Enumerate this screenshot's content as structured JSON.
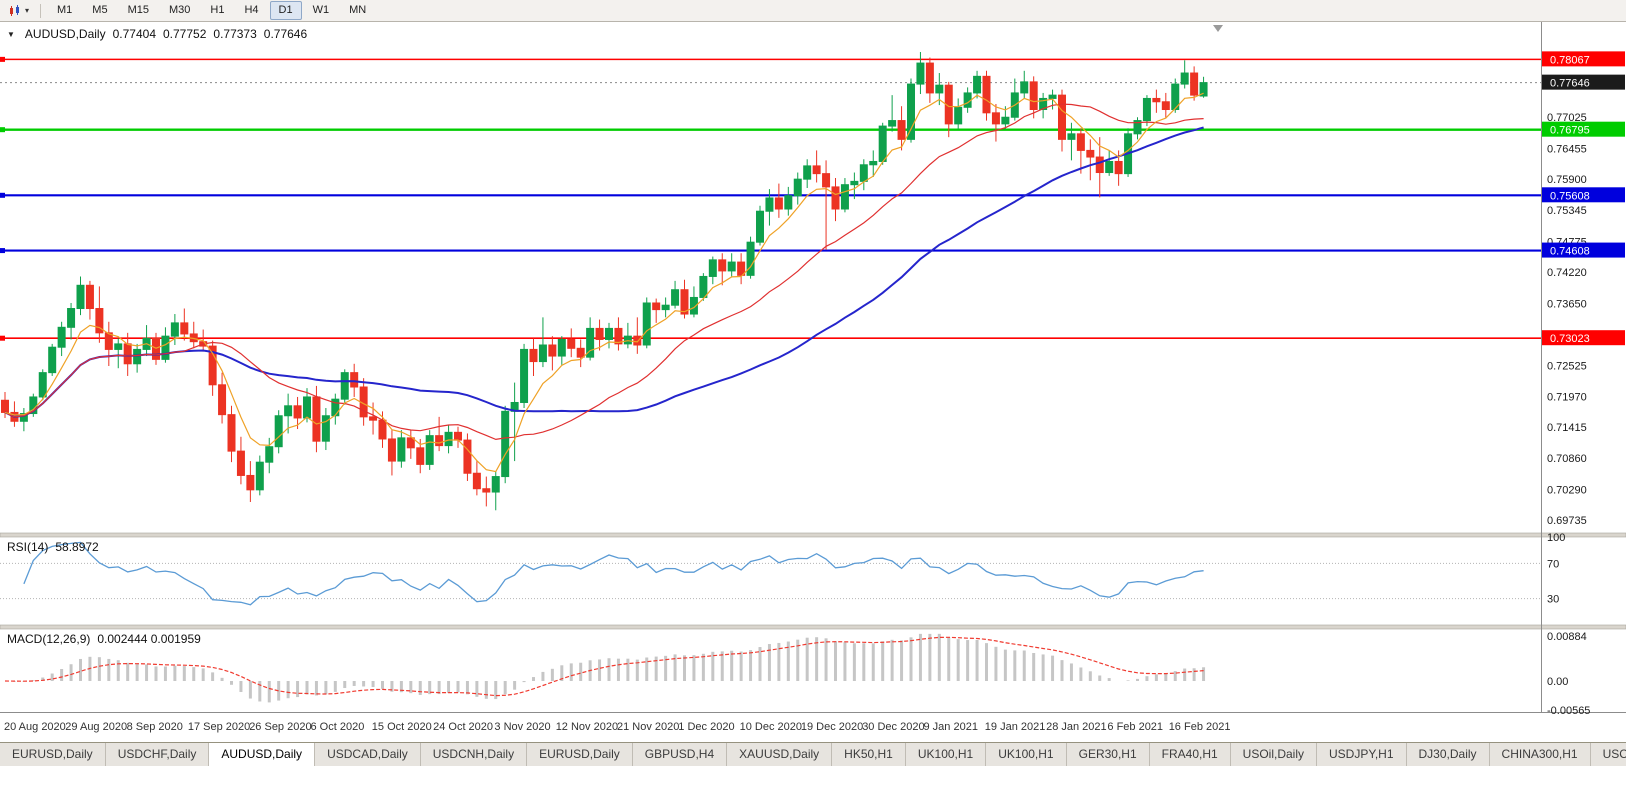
{
  "toolbar": {
    "dropdown_caret": "▾",
    "timeframes": [
      {
        "label": "M1",
        "active": false
      },
      {
        "label": "M5",
        "active": false
      },
      {
        "label": "M15",
        "active": false
      },
      {
        "label": "M30",
        "active": false
      },
      {
        "label": "H1",
        "active": false
      },
      {
        "label": "H4",
        "active": false
      },
      {
        "label": "D1",
        "active": true
      },
      {
        "label": "W1",
        "active": false
      },
      {
        "label": "MN",
        "active": false
      }
    ]
  },
  "chart": {
    "collapse_icon": "▼",
    "title": "AUDUSD,Daily",
    "open": "0.77404",
    "high": "0.77752",
    "low": "0.77373",
    "close": "0.77646",
    "scale": {
      "price_top": 0.78743,
      "price_bottom": 0.69499
    },
    "price_axis_labels": [
      {
        "text": "0.77025",
        "value": 0.77025
      },
      {
        "text": "0.76455",
        "value": 0.76455
      },
      {
        "text": "0.75900",
        "value": 0.759
      },
      {
        "text": "0.75345",
        "value": 0.75345
      },
      {
        "text": "0.74775",
        "value": 0.74775
      },
      {
        "text": "0.74220",
        "value": 0.7422
      },
      {
        "text": "0.73650",
        "value": 0.7365
      },
      {
        "text": "0.73080",
        "value": 0.7308
      },
      {
        "text": "0.72525",
        "value": 0.72525
      },
      {
        "text": "0.71970",
        "value": 0.7197
      },
      {
        "text": "0.71415",
        "value": 0.71415
      },
      {
        "text": "0.70860",
        "value": 0.7086
      },
      {
        "text": "0.70290",
        "value": 0.7029
      },
      {
        "text": "0.69735",
        "value": 0.69735
      }
    ],
    "hlines": [
      {
        "label": "0.78067",
        "value": 0.78067,
        "color": "#ff0000",
        "width": 1.6
      },
      {
        "label": "0.76795",
        "value": 0.76795,
        "color": "#00cc00",
        "width": 2.4
      },
      {
        "label": "0.75608",
        "value": 0.75608,
        "color": "#0000dd",
        "width": 2.2
      },
      {
        "label": "0.74608",
        "value": 0.74608,
        "color": "#0000dd",
        "width": 2.2
      },
      {
        "label": "0.73023",
        "value": 0.73023,
        "color": "#ff0000",
        "width": 1.6
      }
    ],
    "bid": {
      "label": "0.77646",
      "value": 0.77646,
      "badge_bg": "#1b1b1b",
      "badge_fg": "#ffffff"
    },
    "colors": {
      "up": "#0fa04c",
      "down": "#ec3323",
      "ma_fast": "#efa227",
      "ma_mid": "#e03030",
      "ma_slow": "#2525cc",
      "axis_text": "#1a1a1a",
      "background": "#ffffff"
    }
  },
  "chart_data": {
    "type": "candlestick",
    "symbol": "AUDUSD",
    "timeframe": "Daily",
    "dates": [
      "20 Aug 2020",
      "29 Aug 2020",
      "8 Sep 2020",
      "17 Sep 2020",
      "26 Sep 2020",
      "6 Oct 2020",
      "15 Oct 2020",
      "24 Oct 2020",
      "3 Nov 2020",
      "12 Nov 2020",
      "21 Nov 2020",
      "1 Dec 2020",
      "10 Dec 2020",
      "19 Dec 2020",
      "30 Dec 2020",
      "9 Jan 2021",
      "19 Jan 2021",
      "28 Jan 2021",
      "6 Feb 2021",
      "16 Feb 2021"
    ],
    "candles": [
      [
        0.719,
        0.7205,
        0.7158,
        0.7168
      ],
      [
        0.7168,
        0.7188,
        0.7142,
        0.7152
      ],
      [
        0.7152,
        0.7176,
        0.7134,
        0.7166
      ],
      [
        0.7166,
        0.7202,
        0.716,
        0.7196
      ],
      [
        0.7196,
        0.7246,
        0.719,
        0.724
      ],
      [
        0.724,
        0.7292,
        0.7234,
        0.7286
      ],
      [
        0.7286,
        0.7332,
        0.727,
        0.7322
      ],
      [
        0.7322,
        0.7366,
        0.73,
        0.7356
      ],
      [
        0.7356,
        0.7414,
        0.7344,
        0.7398
      ],
      [
        0.7398,
        0.7406,
        0.7336,
        0.7356
      ],
      [
        0.7356,
        0.7396,
        0.7294,
        0.7312
      ],
      [
        0.7312,
        0.7332,
        0.7252,
        0.7282
      ],
      [
        0.7282,
        0.7302,
        0.7248,
        0.7292
      ],
      [
        0.7292,
        0.7312,
        0.7234,
        0.7256
      ],
      [
        0.7256,
        0.7292,
        0.724,
        0.7282
      ],
      [
        0.7282,
        0.7326,
        0.727,
        0.7302
      ],
      [
        0.7302,
        0.7312,
        0.7254,
        0.7264
      ],
      [
        0.7264,
        0.7322,
        0.7258,
        0.7306
      ],
      [
        0.7306,
        0.7346,
        0.729,
        0.733
      ],
      [
        0.733,
        0.7356,
        0.7298,
        0.731
      ],
      [
        0.731,
        0.7332,
        0.7284,
        0.7296
      ],
      [
        0.7296,
        0.7318,
        0.7278,
        0.7288
      ],
      [
        0.7288,
        0.7298,
        0.7198,
        0.7218
      ],
      [
        0.7218,
        0.724,
        0.7148,
        0.7164
      ],
      [
        0.7164,
        0.718,
        0.7078,
        0.7098
      ],
      [
        0.7098,
        0.7124,
        0.7038,
        0.7054
      ],
      [
        0.7054,
        0.708,
        0.7006,
        0.7028
      ],
      [
        0.7028,
        0.709,
        0.7018,
        0.7078
      ],
      [
        0.7078,
        0.7122,
        0.7058,
        0.7106
      ],
      [
        0.7106,
        0.7172,
        0.7094,
        0.7162
      ],
      [
        0.7162,
        0.7202,
        0.713,
        0.718
      ],
      [
        0.718,
        0.7196,
        0.7138,
        0.7158
      ],
      [
        0.7158,
        0.7212,
        0.715,
        0.7196
      ],
      [
        0.7196,
        0.7216,
        0.7096,
        0.7116
      ],
      [
        0.7116,
        0.7176,
        0.71,
        0.7162
      ],
      [
        0.7162,
        0.7202,
        0.7146,
        0.7192
      ],
      [
        0.7192,
        0.7246,
        0.7182,
        0.724
      ],
      [
        0.724,
        0.7256,
        0.7196,
        0.7214
      ],
      [
        0.7214,
        0.723,
        0.7144,
        0.716
      ],
      [
        0.716,
        0.7186,
        0.7128,
        0.7154
      ],
      [
        0.7154,
        0.717,
        0.7104,
        0.712
      ],
      [
        0.712,
        0.7136,
        0.7054,
        0.708
      ],
      [
        0.708,
        0.7136,
        0.7068,
        0.7122
      ],
      [
        0.7122,
        0.7136,
        0.7084,
        0.7104
      ],
      [
        0.7104,
        0.712,
        0.7058,
        0.7074
      ],
      [
        0.7074,
        0.7136,
        0.7064,
        0.7126
      ],
      [
        0.7126,
        0.716,
        0.7098,
        0.7108
      ],
      [
        0.7108,
        0.7146,
        0.7094,
        0.7132
      ],
      [
        0.7132,
        0.7142,
        0.7104,
        0.7118
      ],
      [
        0.7118,
        0.713,
        0.7044,
        0.7058
      ],
      [
        0.7058,
        0.708,
        0.7018,
        0.703
      ],
      [
        0.703,
        0.7052,
        0.6998,
        0.7024
      ],
      [
        0.7024,
        0.7062,
        0.6991,
        0.7052
      ],
      [
        0.7052,
        0.718,
        0.704,
        0.717
      ],
      [
        0.717,
        0.7222,
        0.708,
        0.7186
      ],
      [
        0.7186,
        0.7292,
        0.7176,
        0.7282
      ],
      [
        0.7282,
        0.7302,
        0.7234,
        0.726
      ],
      [
        0.726,
        0.734,
        0.725,
        0.729
      ],
      [
        0.729,
        0.7306,
        0.7244,
        0.727
      ],
      [
        0.727,
        0.7306,
        0.7254,
        0.73
      ],
      [
        0.73,
        0.732,
        0.7268,
        0.7284
      ],
      [
        0.7284,
        0.73,
        0.725,
        0.7268
      ],
      [
        0.7268,
        0.734,
        0.7262,
        0.732
      ],
      [
        0.732,
        0.7336,
        0.728,
        0.73
      ],
      [
        0.73,
        0.733,
        0.7284,
        0.732
      ],
      [
        0.732,
        0.734,
        0.728,
        0.7292
      ],
      [
        0.7292,
        0.733,
        0.7284,
        0.7306
      ],
      [
        0.7306,
        0.734,
        0.7274,
        0.729
      ],
      [
        0.729,
        0.7376,
        0.7284,
        0.7366
      ],
      [
        0.7366,
        0.7374,
        0.733,
        0.7354
      ],
      [
        0.7354,
        0.7376,
        0.734,
        0.7362
      ],
      [
        0.7362,
        0.7406,
        0.7356,
        0.739
      ],
      [
        0.739,
        0.7408,
        0.7338,
        0.7346
      ],
      [
        0.7346,
        0.7396,
        0.734,
        0.7376
      ],
      [
        0.7376,
        0.742,
        0.737,
        0.7414
      ],
      [
        0.7414,
        0.745,
        0.74,
        0.7444
      ],
      [
        0.7444,
        0.7456,
        0.7398,
        0.7424
      ],
      [
        0.7424,
        0.7456,
        0.7414,
        0.744
      ],
      [
        0.744,
        0.7456,
        0.74,
        0.7416
      ],
      [
        0.7416,
        0.7486,
        0.741,
        0.7476
      ],
      [
        0.7476,
        0.7542,
        0.747,
        0.7532
      ],
      [
        0.7532,
        0.7572,
        0.7506,
        0.7556
      ],
      [
        0.7556,
        0.7582,
        0.752,
        0.7536
      ],
      [
        0.7536,
        0.7576,
        0.7524,
        0.756
      ],
      [
        0.756,
        0.7602,
        0.7544,
        0.759
      ],
      [
        0.759,
        0.7626,
        0.7574,
        0.7614
      ],
      [
        0.7614,
        0.7642,
        0.7584,
        0.76
      ],
      [
        0.76,
        0.7624,
        0.7462,
        0.7576
      ],
      [
        0.7576,
        0.7592,
        0.7514,
        0.7536
      ],
      [
        0.7536,
        0.7592,
        0.753,
        0.758
      ],
      [
        0.758,
        0.7602,
        0.7554,
        0.7586
      ],
      [
        0.7586,
        0.7626,
        0.757,
        0.7616
      ],
      [
        0.7616,
        0.7642,
        0.7594,
        0.7622
      ],
      [
        0.7622,
        0.7692,
        0.7616,
        0.7686
      ],
      [
        0.7686,
        0.7742,
        0.7676,
        0.7696
      ],
      [
        0.7696,
        0.7722,
        0.7642,
        0.7662
      ],
      [
        0.7662,
        0.7772,
        0.7656,
        0.7762
      ],
      [
        0.7762,
        0.782,
        0.7744,
        0.78
      ],
      [
        0.78,
        0.781,
        0.7728,
        0.7746
      ],
      [
        0.7746,
        0.7782,
        0.7724,
        0.776
      ],
      [
        0.776,
        0.7766,
        0.7666,
        0.769
      ],
      [
        0.769,
        0.7736,
        0.768,
        0.772
      ],
      [
        0.772,
        0.7756,
        0.771,
        0.7746
      ],
      [
        0.7746,
        0.7786,
        0.7736,
        0.7776
      ],
      [
        0.7776,
        0.7786,
        0.7696,
        0.771
      ],
      [
        0.771,
        0.7726,
        0.7658,
        0.769
      ],
      [
        0.769,
        0.7722,
        0.768,
        0.7702
      ],
      [
        0.7702,
        0.7772,
        0.7696,
        0.7746
      ],
      [
        0.7746,
        0.7786,
        0.7736,
        0.7766
      ],
      [
        0.7766,
        0.7776,
        0.77,
        0.7716
      ],
      [
        0.7716,
        0.7746,
        0.77,
        0.7736
      ],
      [
        0.7736,
        0.7752,
        0.7716,
        0.7742
      ],
      [
        0.7742,
        0.7752,
        0.764,
        0.7662
      ],
      [
        0.7662,
        0.7692,
        0.7624,
        0.7672
      ],
      [
        0.7672,
        0.7682,
        0.76,
        0.7642
      ],
      [
        0.7642,
        0.7662,
        0.7588,
        0.763
      ],
      [
        0.763,
        0.7666,
        0.7557,
        0.7602
      ],
      [
        0.7602,
        0.7642,
        0.7596,
        0.7622
      ],
      [
        0.7622,
        0.7642,
        0.7578,
        0.76
      ],
      [
        0.76,
        0.7682,
        0.7594,
        0.7672
      ],
      [
        0.7672,
        0.7702,
        0.7662,
        0.7696
      ],
      [
        0.7696,
        0.7742,
        0.7686,
        0.7736
      ],
      [
        0.7736,
        0.7752,
        0.771,
        0.773
      ],
      [
        0.773,
        0.7746,
        0.77,
        0.7716
      ],
      [
        0.7716,
        0.7772,
        0.771,
        0.7762
      ],
      [
        0.7762,
        0.7805,
        0.7754,
        0.7782
      ],
      [
        0.7782,
        0.7794,
        0.7732,
        0.7742
      ],
      [
        0.77404,
        0.77752,
        0.77373,
        0.77646
      ]
    ],
    "indicators": {
      "moving_averages": [
        {
          "name": "fast",
          "period": 6,
          "color": "#efa227"
        },
        {
          "name": "mid",
          "period": 20,
          "color": "#e03030"
        },
        {
          "name": "slow",
          "period": 45,
          "color": "#2525cc"
        }
      ],
      "rsi": {
        "period": 14,
        "value_text": "58.8972",
        "levels": [
          100,
          70,
          30
        ],
        "color": "#5b9bd5"
      },
      "macd": {
        "fast": 12,
        "slow": 26,
        "signal": 9,
        "value_text": "0.002444",
        "signal_text": "0.001959",
        "axis_labels": [
          "0.00884",
          "0.00",
          "-0.00565"
        ],
        "axis_values": [
          0.00884,
          0,
          -0.00565
        ],
        "hist_color": "#c6c6c6",
        "signal_color": "#f03b30"
      }
    }
  },
  "rsi_panel": {
    "title": "RSI(14)",
    "value": "58.8972"
  },
  "macd_panel": {
    "title": "MACD(12,26,9)",
    "values": "0.002444 0.001959"
  },
  "tabs": {
    "scroll_left_icon": "◄",
    "items": [
      {
        "label": "EURUSD,Daily",
        "active": false
      },
      {
        "label": "USDCHF,Daily",
        "active": false
      },
      {
        "label": "AUDUSD,Daily",
        "active": true
      },
      {
        "label": "USDCAD,Daily",
        "active": false
      },
      {
        "label": "USDCNH,Daily",
        "active": false
      },
      {
        "label": "EURUSD,Daily",
        "active": false
      },
      {
        "label": "GBPUSD,H4",
        "active": false
      },
      {
        "label": "XAUUSD,Daily",
        "active": false
      },
      {
        "label": "HK50,H1",
        "active": false
      },
      {
        "label": "UK100,H1",
        "active": false
      },
      {
        "label": "UK100,H1",
        "active": false
      },
      {
        "label": "GER30,H1",
        "active": false
      },
      {
        "label": "FRA40,H1",
        "active": false
      },
      {
        "label": "USOil,Daily",
        "active": false
      },
      {
        "label": "USDJPY,H1",
        "active": false
      },
      {
        "label": "DJ30,Daily",
        "active": false
      },
      {
        "label": "CHINA300,H1",
        "active": false
      },
      {
        "label": "USC",
        "active": false
      }
    ]
  }
}
